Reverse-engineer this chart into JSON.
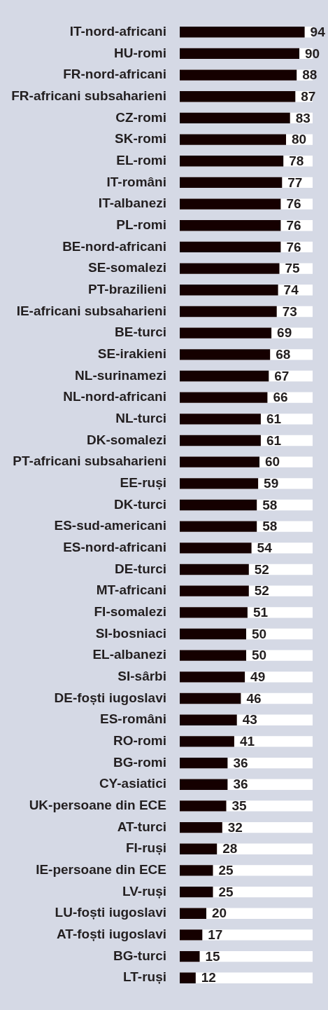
{
  "chart_data": {
    "type": "bar",
    "orientation": "horizontal",
    "categories": [
      "IT-nord-africani",
      "HU-romi",
      "FR-nord-africani",
      "FR-africani subsaharieni",
      "CZ-romi",
      "SK-romi",
      "EL-romi",
      "IT-români",
      "IT-albanezi",
      "PL-romi",
      "BE-nord-africani",
      "SE-somalezi",
      "PT-brazilieni",
      "IE-africani subsaharieni",
      "BE-turci",
      "SE-irakieni",
      "NL-surinamezi",
      "NL-nord-africani",
      "NL-turci",
      "DK-somalezi",
      "PT-africani subsaharieni",
      "EE-ruși",
      "DK-turci",
      "ES-sud-americani",
      "ES-nord-africani",
      "DE-turci",
      "MT-africani",
      "FI-somalezi",
      "SI-bosniaci",
      "EL-albanezi",
      "SI-sârbi",
      "DE-foști iugoslavi",
      "ES-români",
      "RO-romi",
      "BG-romi",
      "CY-asiatici",
      "UK-persoane din ECE",
      "AT-turci",
      "FI-ruși",
      "IE-persoane din ECE",
      "LV-ruși",
      "LU-foști iugoslavi",
      "AT-foști iugoslavi",
      "BG-turci",
      "LT-ruși"
    ],
    "values": [
      94,
      90,
      88,
      87,
      83,
      80,
      78,
      77,
      76,
      76,
      76,
      75,
      74,
      73,
      69,
      68,
      67,
      66,
      61,
      61,
      60,
      59,
      58,
      58,
      54,
      52,
      52,
      51,
      50,
      50,
      49,
      46,
      43,
      41,
      36,
      36,
      35,
      32,
      28,
      25,
      25,
      20,
      17,
      15,
      12
    ],
    "color": "#150000",
    "xlim": [
      0,
      100
    ],
    "data_labels": true,
    "tick_labels": "y",
    "legend": false
  }
}
